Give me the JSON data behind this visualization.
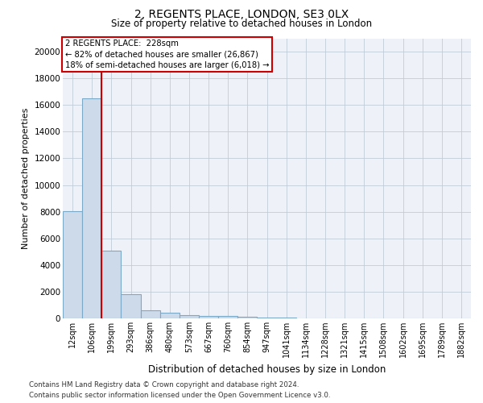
{
  "title": "2, REGENTS PLACE, LONDON, SE3 0LX",
  "subtitle": "Size of property relative to detached houses in London",
  "xlabel": "Distribution of detached houses by size in London",
  "ylabel": "Number of detached properties",
  "bar_labels": [
    "12sqm",
    "106sqm",
    "199sqm",
    "293sqm",
    "386sqm",
    "480sqm",
    "573sqm",
    "667sqm",
    "760sqm",
    "854sqm",
    "947sqm",
    "1041sqm",
    "1134sqm",
    "1228sqm",
    "1321sqm",
    "1415sqm",
    "1508sqm",
    "1602sqm",
    "1695sqm",
    "1789sqm",
    "1882sqm"
  ],
  "bar_values": [
    8050,
    16500,
    5100,
    1800,
    600,
    400,
    250,
    200,
    160,
    120,
    80,
    50,
    30,
    20,
    15,
    10,
    8,
    5,
    4,
    3,
    2
  ],
  "bar_color": "#ccdaea",
  "bar_edge_color": "#7aaac8",
  "red_line_x": 1.5,
  "red_line_color": "#cc0000",
  "annotation_text": "2 REGENTS PLACE:  228sqm\n← 82% of detached houses are smaller (26,867)\n18% of semi-detached houses are larger (6,018) →",
  "annotation_box_color": "#cc0000",
  "ylim": [
    0,
    21000
  ],
  "yticks": [
    0,
    2000,
    4000,
    6000,
    8000,
    10000,
    12000,
    14000,
    16000,
    18000,
    20000
  ],
  "footer_line1": "Contains HM Land Registry data © Crown copyright and database right 2024.",
  "footer_line2": "Contains public sector information licensed under the Open Government Licence v3.0.",
  "plot_bg_color": "#eef2f8",
  "grid_color": "#c0ccd8"
}
